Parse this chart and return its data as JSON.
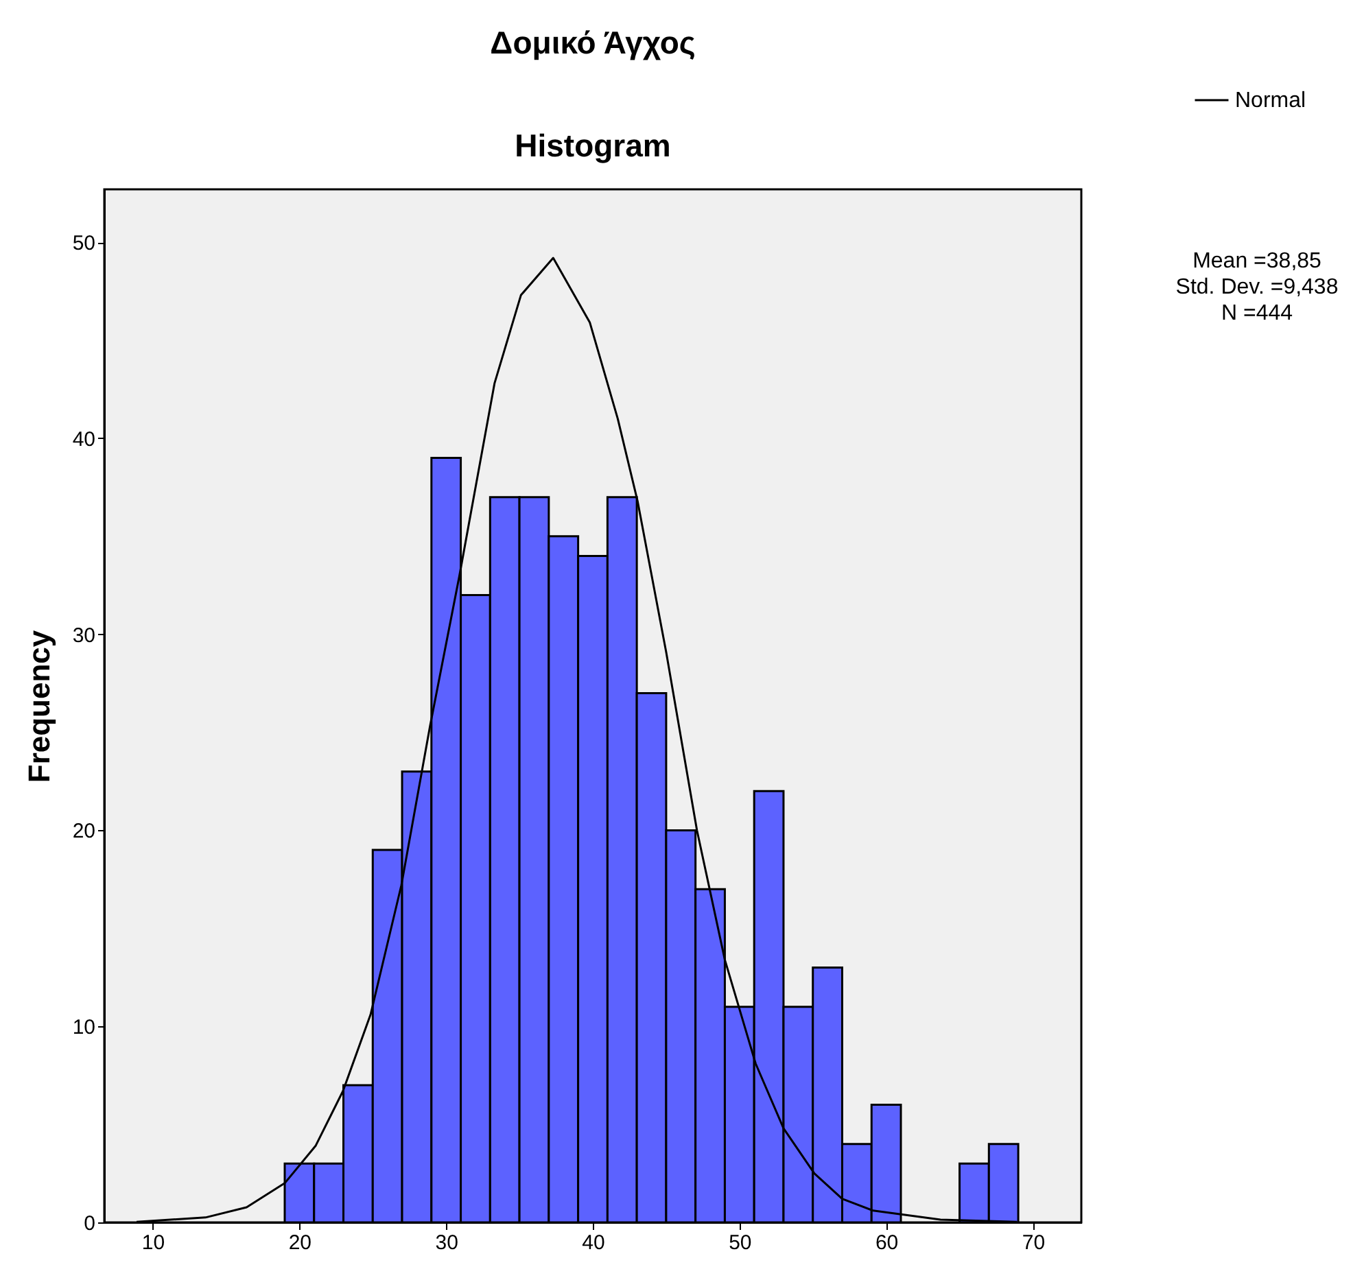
{
  "chart_data": {
    "type": "histogram",
    "title": "Δομικό Άγχος",
    "subtitle": "Histogram",
    "ylabel": "Frequency",
    "bins": [
      19,
      21,
      23,
      25,
      27,
      29,
      31,
      33,
      35,
      37,
      39,
      41,
      43,
      45,
      47,
      49,
      51,
      53,
      55,
      57,
      59,
      61,
      63,
      65,
      67,
      69
    ],
    "values": [
      3,
      3,
      7,
      19,
      23,
      39,
      32,
      37,
      37,
      35,
      34,
      37,
      27,
      20,
      17,
      11,
      22,
      11,
      13,
      4,
      6,
      0,
      0,
      3,
      4
    ],
    "color": "#5c62ff",
    "series": [
      {
        "name": "Normal",
        "type": "line",
        "color": "#000000",
        "x": [
          8.9,
          13.6,
          16.4,
          19.0,
          21.1,
          22.97,
          24.85,
          26.95,
          28.9,
          30.9,
          33.3,
          35.1,
          37.3,
          39.8,
          41.7,
          43.05,
          45.0,
          47.1,
          49.0,
          51.1,
          53.0,
          55.1,
          57.0,
          59.1,
          63.7,
          68.9
        ],
        "values": [
          0.03,
          0.25,
          0.77,
          2.0,
          3.9,
          6.7,
          10.6,
          17.2,
          25.3,
          32.96,
          42.8,
          47.3,
          49.2,
          45.9,
          41.0,
          36.8,
          29.1,
          20.0,
          13.4,
          8.1,
          4.8,
          2.5,
          1.2,
          0.6,
          0.14,
          0.03
        ]
      }
    ],
    "xlim": [
      6.7,
      73.3
    ],
    "xticks": [
      10,
      20,
      30,
      40,
      50,
      60,
      70
    ],
    "ylim": [
      0,
      52.7
    ],
    "yticks": [
      0,
      10,
      20,
      30,
      40,
      50
    ],
    "grid": false,
    "legend": "top right",
    "annotations": [
      "Mean =38,85",
      "Std. Dev. =9,438",
      "N =444"
    ]
  }
}
